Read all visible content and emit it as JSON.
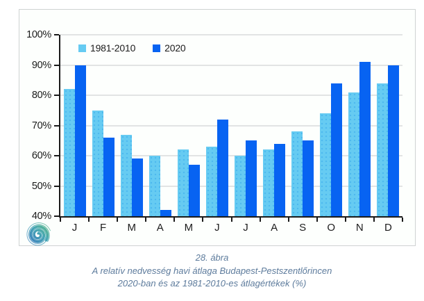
{
  "chart_data": {
    "type": "bar",
    "title": "",
    "xlabel": "",
    "ylabel": "",
    "categories": [
      "J",
      "F",
      "M",
      "A",
      "M",
      "J",
      "J",
      "A",
      "S",
      "O",
      "N",
      "D"
    ],
    "series": [
      {
        "name": "1981-2010",
        "color": "#66CBF2",
        "values": [
          82,
          75,
          67,
          60,
          62,
          63,
          60,
          62,
          68,
          74,
          81,
          84
        ]
      },
      {
        "name": "2020",
        "color": "#0763F2",
        "values": [
          90,
          66,
          59,
          42,
          57,
          72,
          65,
          64,
          65,
          84,
          91,
          90
        ]
      }
    ],
    "ylim": [
      40,
      100
    ],
    "ytick_step": 10,
    "yticks": [
      "40%",
      "50%",
      "60%",
      "70%",
      "80%",
      "90%",
      "100%"
    ],
    "grid": true,
    "legend_position": "top-left-inside"
  },
  "figure": {
    "caption_lines": [
      "28. ábra",
      "A relatív nedvesség havi átlaga Budapest-Pestszentlőrincen",
      "2020-ban és az 1981-2010-es átlagértékek (%)"
    ]
  },
  "logo": {
    "icon": "omsz-spiral-logo"
  },
  "colors": {
    "bar_light": "#66CBF2",
    "bar_dark": "#0763F2",
    "gridline": "#C7CACC",
    "axis": "#1A1A1A",
    "frame_border": "#CFD2D2",
    "plot_background": "#FDFFFD",
    "caption_text": "#5D7B9C",
    "logo_blue": "#3C7FBE",
    "logo_green": "#5CB98A"
  }
}
